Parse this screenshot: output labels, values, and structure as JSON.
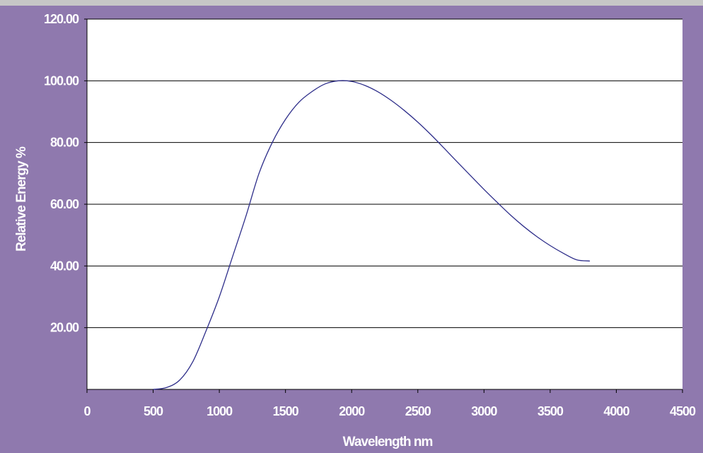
{
  "chart_data": {
    "type": "line",
    "title": "",
    "xlabel": "Wavelength nm",
    "ylabel": "Relative Energy %",
    "xlim": [
      0,
      4500
    ],
    "ylim": [
      0,
      120
    ],
    "x_ticks": [
      0,
      500,
      1000,
      1500,
      2000,
      2500,
      3000,
      3500,
      4000,
      4500
    ],
    "x_tick_labels": [
      "0",
      "500",
      "1000",
      "1500",
      "2000",
      "2500",
      "3000",
      "3500",
      "4000",
      "4500"
    ],
    "y_ticks": [
      20,
      40,
      60,
      80,
      100,
      120
    ],
    "y_tick_labels": [
      "20.00",
      "40.00",
      "60.00",
      "80.00",
      "100.00",
      "120.00"
    ],
    "grid": "horizontal",
    "legend": "none",
    "series": [
      {
        "color": "#2e2e8a",
        "x": [
          500,
          600,
          700,
          800,
          900,
          1000,
          1100,
          1200,
          1300,
          1400,
          1500,
          1600,
          1700,
          1800,
          1900,
          2000,
          2100,
          2200,
          2300,
          2400,
          2500,
          2600,
          2700,
          2800,
          2900,
          3000,
          3100,
          3200,
          3300,
          3400,
          3500,
          3600,
          3700,
          3800
        ],
        "y": [
          0,
          0.6,
          3,
          9,
          19,
          30,
          43,
          56,
          70,
          80,
          87.5,
          93,
          96.5,
          99,
          100,
          99.8,
          98.5,
          96.4,
          93.6,
          90.3,
          86.6,
          82.5,
          78.1,
          73.6,
          69.2,
          64.8,
          60.6,
          56.5,
          52.8,
          49.5,
          46.6,
          44.1,
          42,
          41.6
        ]
      }
    ]
  }
}
